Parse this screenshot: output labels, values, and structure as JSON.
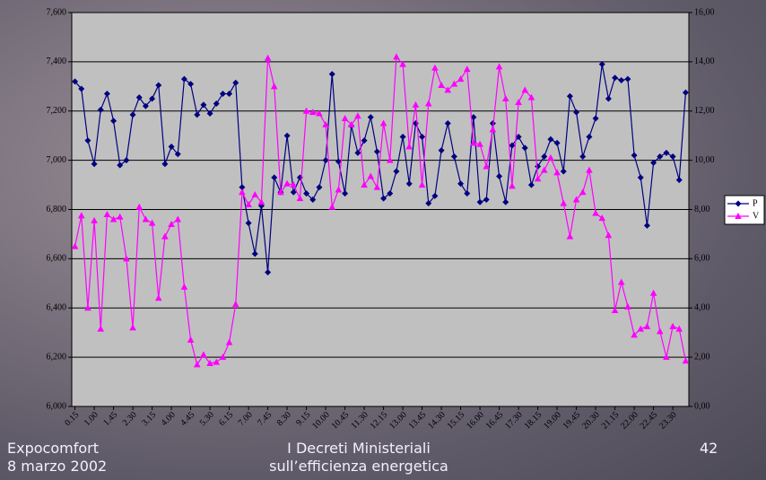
{
  "chart_data": {
    "type": "line",
    "categories": [
      "0.15",
      null,
      null,
      "1.00",
      null,
      null,
      "1.45",
      null,
      null,
      "2.30",
      null,
      null,
      "3.15",
      null,
      null,
      "4.00",
      null,
      null,
      "4.45",
      null,
      null,
      "5.30",
      null,
      null,
      "6.15",
      null,
      null,
      "7.00",
      null,
      null,
      "7.45",
      null,
      null,
      "8.30",
      null,
      null,
      "9.15",
      null,
      null,
      "10.00",
      null,
      null,
      "10.45",
      null,
      null,
      "11.30",
      null,
      null,
      "12.15",
      null,
      null,
      "13.00",
      null,
      null,
      "13.45",
      null,
      null,
      "14.30",
      null,
      null,
      "15.15",
      null,
      null,
      "16.00",
      null,
      null,
      "16.45",
      null,
      null,
      "17.30",
      null,
      null,
      "18.15",
      null,
      null,
      "19.00",
      null,
      null,
      "19.45",
      null,
      null,
      "20.30",
      null,
      null,
      "21.15",
      null,
      null,
      "22.00",
      null,
      null,
      "22.45",
      null,
      null,
      "23.30",
      null,
      null
    ],
    "series": [
      {
        "name": "P",
        "color": "#000080",
        "marker": "diamond",
        "values": [
          7320,
          7290,
          7080,
          6985,
          7205,
          7270,
          7160,
          6980,
          7000,
          7185,
          7255,
          7220,
          7250,
          7305,
          6985,
          7055,
          7025,
          7330,
          7310,
          7185,
          7225,
          7190,
          7230,
          7270,
          7270,
          7315,
          6890,
          6745,
          6620,
          6815,
          6545,
          6930,
          6870,
          7100,
          6870,
          6930,
          6865,
          6840,
          6890,
          7000,
          7350,
          6995,
          6865,
          7140,
          7030,
          7080,
          7175,
          7035,
          6845,
          6865,
          6955,
          7095,
          6905,
          7150,
          7095,
          6825,
          6855,
          7040,
          7150,
          7015,
          6905,
          6865,
          7175,
          6830,
          6840,
          7150,
          6935,
          6830,
          7060,
          7095,
          7050,
          6900,
          6975,
          7015,
          7085,
          7070,
          6955,
          7260,
          7195,
          7015,
          7095,
          7170,
          7390,
          7250,
          7335,
          7325,
          7330,
          7020,
          6930,
          6735,
          6990,
          7015,
          7030,
          7015,
          6920,
          7275
        ]
      },
      {
        "name": "V",
        "color": "#ff00ff",
        "marker": "triangle",
        "axis": "y2",
        "values": [
          6.5,
          7.75,
          4.0,
          7.55,
          3.15,
          7.8,
          7.6,
          7.7,
          6.0,
          3.2,
          8.1,
          7.6,
          7.45,
          4.4,
          6.9,
          7.4,
          7.6,
          4.85,
          2.7,
          1.7,
          2.1,
          1.75,
          1.8,
          2.0,
          2.6,
          4.15,
          8.7,
          8.2,
          8.6,
          8.3,
          14.15,
          13.0,
          8.7,
          9.05,
          9.0,
          8.45,
          12.0,
          11.95,
          11.9,
          11.45,
          8.1,
          8.8,
          11.7,
          11.45,
          11.8,
          9.0,
          9.35,
          8.9,
          11.5,
          10.0,
          14.2,
          13.9,
          10.55,
          12.25,
          9.0,
          12.3,
          13.75,
          13.05,
          12.85,
          13.1,
          13.3,
          13.7,
          10.7,
          10.65,
          9.75,
          11.25,
          13.8,
          12.5,
          8.95,
          12.35,
          12.85,
          12.55,
          9.25,
          9.6,
          10.1,
          9.5,
          8.25,
          6.9,
          8.4,
          8.7,
          9.6,
          7.85,
          7.65,
          6.95,
          3.9,
          5.05,
          4.05,
          2.9,
          3.15,
          3.25,
          4.6,
          3.05,
          2.0,
          3.25,
          3.15,
          1.85
        ]
      }
    ],
    "ylim": [
      6000,
      7600
    ],
    "yticks": [
      {
        "value": 6000,
        "label": "6,000"
      },
      {
        "value": 6200,
        "label": "6,200"
      },
      {
        "value": 6400,
        "label": "6,400"
      },
      {
        "value": 6600,
        "label": "6,600"
      },
      {
        "value": 6800,
        "label": "6,800"
      },
      {
        "value": 7000,
        "label": "7,000"
      },
      {
        "value": 7200,
        "label": "7,200"
      },
      {
        "value": 7400,
        "label": "7,400"
      },
      {
        "value": 7600,
        "label": "7,600"
      }
    ],
    "y2lim": [
      0,
      16
    ],
    "y2ticks": [
      {
        "value": 0,
        "label": "0,00"
      },
      {
        "value": 2,
        "label": "2,00"
      },
      {
        "value": 4,
        "label": "4,00"
      },
      {
        "value": 6,
        "label": "6,00"
      },
      {
        "value": 8,
        "label": "8,00"
      },
      {
        "value": 10,
        "label": "10,00"
      },
      {
        "value": 12,
        "label": "12,00"
      },
      {
        "value": 14,
        "label": "14,00"
      },
      {
        "value": 16,
        "label": "16,00"
      }
    ],
    "grid": true,
    "legend": "right",
    "plot_background": "#c0c0c0"
  },
  "footer": {
    "left": [
      "Expocomfort",
      "8 marzo 2002"
    ],
    "center": [
      "I Decreti Ministeriali",
      "sull’efficienza energetica"
    ],
    "page": "42"
  }
}
